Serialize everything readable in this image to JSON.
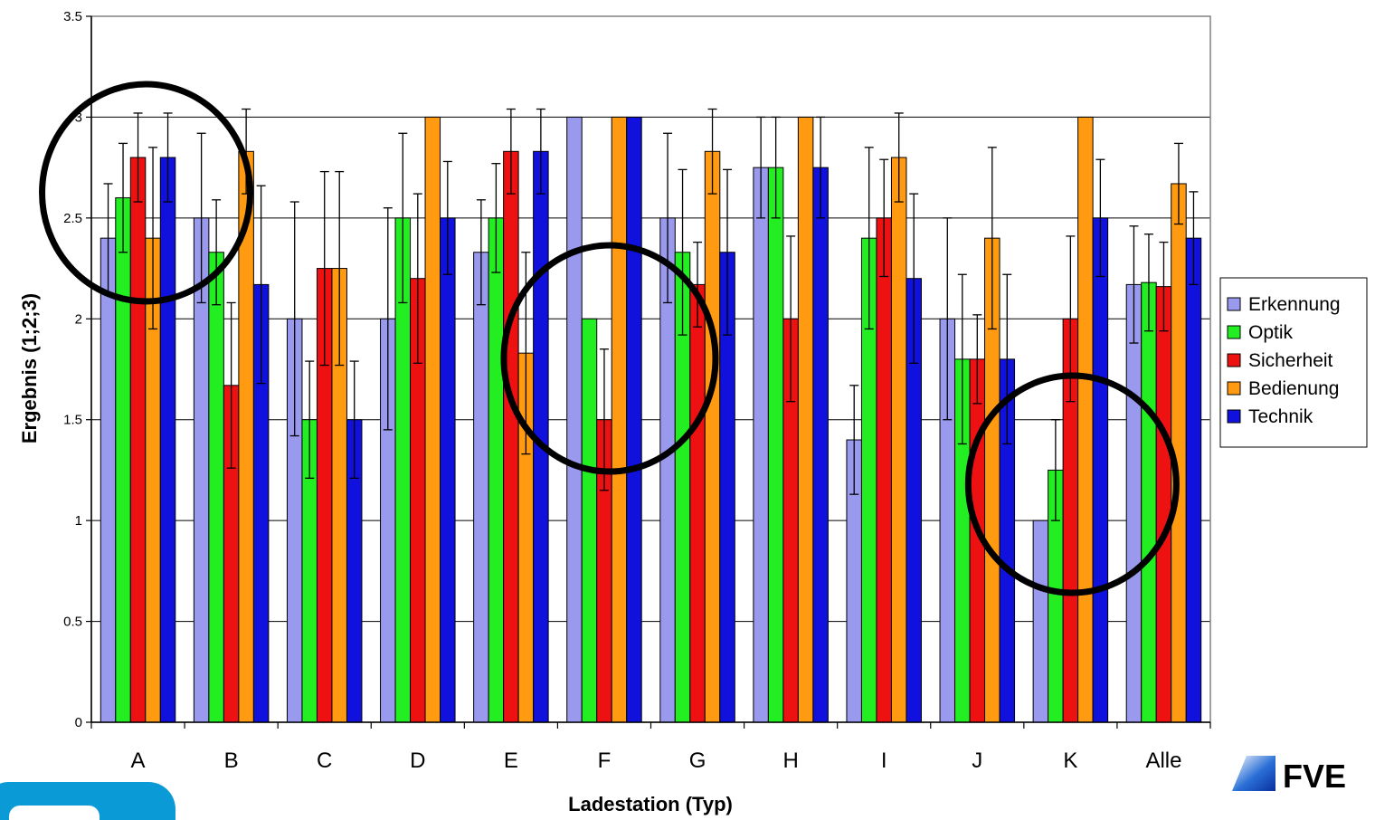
{
  "chart_data": {
    "type": "bar",
    "xlabel": "Ladestation (Typ)",
    "ylabel": "Ergebnis (1;2;3)",
    "ylim": [
      0,
      3.5
    ],
    "yticks": [
      "0",
      "0.5",
      "1",
      "1.5",
      "2",
      "2.5",
      "3",
      "3.5"
    ],
    "grid": true,
    "legend_position": "right",
    "categories": [
      "A",
      "B",
      "C",
      "D",
      "E",
      "F",
      "G",
      "H",
      "I",
      "J",
      "K",
      "Alle"
    ],
    "series": [
      {
        "name": "Erkennung",
        "color": "#9999ee",
        "values": [
          2.4,
          2.5,
          2.0,
          2.0,
          2.33,
          3.0,
          2.5,
          2.75,
          1.4,
          2.0,
          1.0,
          2.17
        ],
        "errors": [
          0.27,
          0.42,
          0.58,
          0.55,
          0.26,
          0,
          0.42,
          0.25,
          0.27,
          0.5,
          0,
          0.29
        ]
      },
      {
        "name": "Optik",
        "color": "#22ee22",
        "values": [
          2.6,
          2.33,
          1.5,
          2.5,
          2.5,
          2.0,
          2.33,
          2.75,
          2.4,
          1.8,
          1.25,
          2.18
        ],
        "errors": [
          0.27,
          0.26,
          0.29,
          0.42,
          0.27,
          0,
          0.41,
          0.25,
          0.45,
          0.42,
          0.25,
          0.24
        ]
      },
      {
        "name": "Sicherheit",
        "color": "#ee1111",
        "values": [
          2.8,
          1.67,
          2.25,
          2.2,
          2.83,
          1.5,
          2.17,
          2.0,
          2.5,
          1.8,
          2.0,
          2.16
        ],
        "errors": [
          0.22,
          0.41,
          0.48,
          0.42,
          0.21,
          0.35,
          0.21,
          0.41,
          0.29,
          0.22,
          0.41,
          0.22
        ]
      },
      {
        "name": "Bedienung",
        "color": "#ff9a11",
        "values": [
          2.4,
          2.83,
          2.25,
          3.0,
          1.83,
          3.0,
          2.83,
          3.0,
          2.8,
          2.4,
          3.0,
          2.67
        ],
        "errors": [
          0.45,
          0.21,
          0.48,
          0,
          0.5,
          0,
          0.21,
          0,
          0.22,
          0.45,
          0,
          0.2
        ]
      },
      {
        "name": "Technik",
        "color": "#1111dd",
        "values": [
          2.8,
          2.17,
          1.5,
          2.5,
          2.83,
          3.0,
          2.33,
          2.75,
          2.2,
          1.8,
          2.5,
          2.4
        ],
        "errors": [
          0.22,
          0.49,
          0.29,
          0.28,
          0.21,
          0,
          0.41,
          0.25,
          0.42,
          0.42,
          0.29,
          0.23
        ]
      }
    ],
    "annotations": [
      {
        "type": "circle",
        "around": "A"
      },
      {
        "type": "circle",
        "around": "F"
      },
      {
        "type": "circle",
        "around": "K"
      }
    ]
  },
  "logo": {
    "text": "FVE"
  },
  "colors": {
    "grid": "#000000",
    "plot_border": "#808080",
    "highlight_circle": "#000000",
    "corner_tab": "#0a9ad6"
  }
}
